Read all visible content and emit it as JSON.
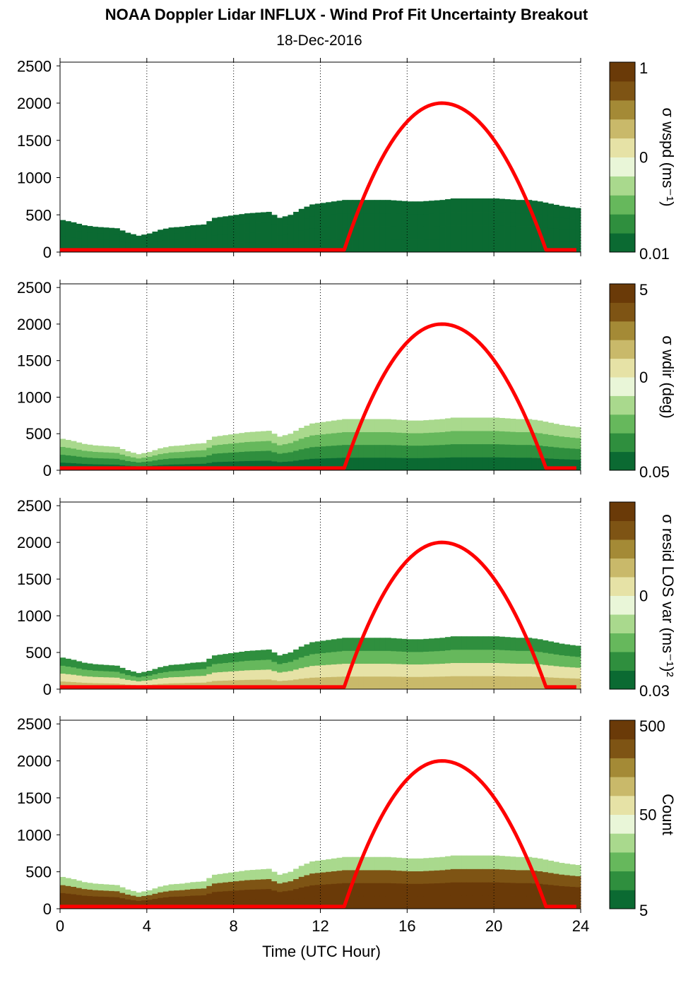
{
  "title": "NOAA Doppler Lidar INFLUX - Wind Prof Fit Uncertainty Breakout",
  "subtitle": "18-Dec-2016",
  "chart_data": {
    "type": "heatmap",
    "xlabel": "Time (UTC Hour)",
    "xlim": [
      0,
      24
    ],
    "x_ticks": [
      "0",
      "4",
      "8",
      "12",
      "16",
      "20",
      "24"
    ],
    "ylim": [
      0,
      2550
    ],
    "y_ticks": [
      "0",
      "500",
      "1000",
      "1500",
      "2000",
      "2500"
    ],
    "grid": "dotted vertical lines every 4 hours",
    "colormap": [
      "#0b6a32",
      "#2f8f3e",
      "#66b85c",
      "#a9d98d",
      "#e9f6d8",
      "#e6e2a6",
      "#c9b96a",
      "#a48a36",
      "#7e5414",
      "#6a3a08"
    ],
    "overlay_color": "#ff0000",
    "overlay_curve": {
      "name": "",
      "t_start": 13.1,
      "t_peak": 17.6,
      "t_end": 22.4,
      "baseline": 30,
      "peak": 2000
    },
    "data_top_height": [
      [
        0,
        430
      ],
      [
        0.5,
        400
      ],
      [
        1,
        360
      ],
      [
        1.5,
        340
      ],
      [
        2,
        330
      ],
      [
        2.5,
        320
      ],
      [
        3,
        260
      ],
      [
        3.5,
        220
      ],
      [
        4,
        250
      ],
      [
        4.5,
        300
      ],
      [
        5,
        330
      ],
      [
        5.5,
        340
      ],
      [
        6,
        360
      ],
      [
        6.5,
        370
      ],
      [
        7,
        460
      ],
      [
        7.5,
        480
      ],
      [
        8,
        500
      ],
      [
        8.5,
        520
      ],
      [
        9,
        530
      ],
      [
        9.5,
        540
      ],
      [
        10,
        460
      ],
      [
        10.5,
        500
      ],
      [
        11,
        580
      ],
      [
        11.5,
        640
      ],
      [
        12,
        660
      ],
      [
        12.5,
        680
      ],
      [
        13,
        700
      ],
      [
        13.5,
        700
      ],
      [
        14,
        700
      ],
      [
        14.5,
        700
      ],
      [
        15,
        700
      ],
      [
        15.5,
        690
      ],
      [
        16,
        680
      ],
      [
        16.5,
        680
      ],
      [
        17,
        690
      ],
      [
        17.5,
        700
      ],
      [
        18,
        720
      ],
      [
        18.5,
        720
      ],
      [
        19,
        720
      ],
      [
        19.5,
        720
      ],
      [
        20,
        720
      ],
      [
        20.5,
        710
      ],
      [
        21,
        700
      ],
      [
        21.5,
        700
      ],
      [
        22,
        680
      ],
      [
        22.5,
        650
      ],
      [
        23,
        620
      ],
      [
        23.5,
        600
      ],
      [
        23.8,
        590
      ]
    ],
    "panels": [
      {
        "colorbar_label": "σ wspd (ms⁻¹)",
        "colorbar_scale": "log",
        "colorbar_ticks": [
          "1",
          "0",
          "0.01"
        ],
        "color_by_height": [
          "#0b6a32",
          "#0b6a32",
          "#0b6a32",
          "#0b6a32"
        ]
      },
      {
        "colorbar_label": "σ wdir (deg)",
        "colorbar_scale": "log",
        "colorbar_ticks": [
          "5",
          "0",
          "0.05"
        ],
        "color_by_height": [
          "#0b6a32",
          "#2f8f3e",
          "#66b85c",
          "#a9d98d"
        ]
      },
      {
        "colorbar_label": "σ resid LOS var (ms⁻¹)²",
        "colorbar_scale": "log",
        "colorbar_ticks": [
          "0",
          "0.03"
        ],
        "color_by_height": [
          "#c9b96a",
          "#e6e2a6",
          "#66b85c",
          "#2f8f3e"
        ]
      },
      {
        "colorbar_label": "Count",
        "colorbar_scale": "log",
        "colorbar_ticks": [
          "500",
          "50",
          "5"
        ],
        "color_by_height": [
          "#6a3a08",
          "#6a3a08",
          "#7e5414",
          "#a9d98d"
        ]
      }
    ]
  }
}
